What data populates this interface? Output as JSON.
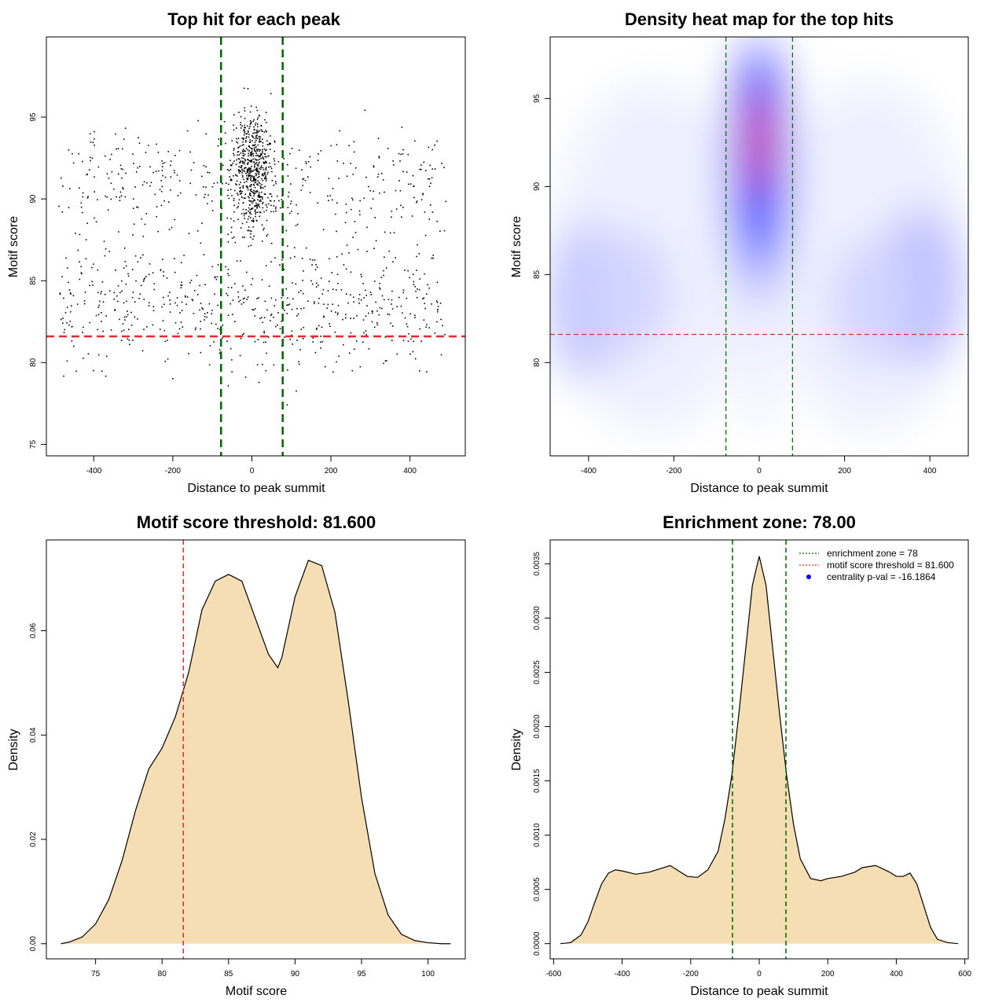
{
  "chart_data": [
    {
      "id": "scatter",
      "type": "scatter",
      "title": "Top hit for each peak",
      "xlabel": "Distance to peak summit",
      "ylabel": "Motif score",
      "xlim": [
        -520,
        540
      ],
      "ylim": [
        74.3,
        99.9
      ],
      "xticks": [
        -400,
        -200,
        0,
        200,
        400
      ],
      "yticks": [
        75,
        80,
        85,
        90,
        95
      ],
      "vlines": [
        -78,
        78
      ],
      "hline": 81.6,
      "colors": {
        "points": "#000000",
        "vlines": "#006400",
        "hline": "#e8282d"
      },
      "approx_points": 1600,
      "note": "dense cluster within |x|<78 centered near score 91.5; broad background bimodal around 83.5 and 91"
    },
    {
      "id": "heatmap",
      "type": "heatmap",
      "title": "Density heat map for the top hits",
      "xlabel": "Distance to peak summit",
      "ylabel": "Motif score",
      "xlim": [
        -490,
        490
      ],
      "ylim": [
        74.7,
        98.5
      ],
      "xticks": [
        -400,
        -200,
        0,
        200,
        400
      ],
      "yticks": [
        80,
        85,
        90,
        95
      ],
      "vlines": [
        -78,
        78
      ],
      "hline": 81.6,
      "colors": {
        "low": "#ffffff",
        "mid": "#0000ff",
        "high": "#ff0000",
        "vlines": "#006400",
        "hline": "#e8282d"
      },
      "hotspots": [
        {
          "x": 0,
          "y": 92.5,
          "intensity": 1.0
        },
        {
          "x": -420,
          "y": 83.5,
          "intensity": 0.3
        },
        {
          "x": 370,
          "y": 84.3,
          "intensity": 0.3
        }
      ]
    },
    {
      "id": "score_density",
      "type": "area",
      "title": "Motif score threshold: 81.600",
      "xlabel": "Motif score",
      "ylabel": "Density",
      "xlim": [
        71.3,
        102.8
      ],
      "ylim": [
        -0.0029,
        0.0774
      ],
      "xticks": [
        75,
        80,
        85,
        90,
        95,
        100
      ],
      "yticks": [
        0.0,
        0.02,
        0.04,
        0.06
      ],
      "ytick_labels": [
        "0.00",
        "0.02",
        "0.04",
        "0.06"
      ],
      "vline": 81.6,
      "colors": {
        "fill": "#f5deb3",
        "line": "#000000",
        "vline": "#e8282d"
      },
      "x": [
        72.4,
        73,
        74,
        75,
        76,
        77,
        78,
        79,
        80,
        81,
        82,
        83,
        84,
        85,
        86,
        87,
        88,
        88.7,
        89,
        90,
        91,
        92,
        93,
        94,
        95,
        96,
        97,
        98,
        99,
        100,
        101,
        101.7
      ],
      "y": [
        0.0,
        0.0003,
        0.0013,
        0.0038,
        0.0085,
        0.016,
        0.0255,
        0.0335,
        0.0375,
        0.0435,
        0.052,
        0.064,
        0.0695,
        0.0708,
        0.0695,
        0.0625,
        0.0555,
        0.0529,
        0.0548,
        0.0665,
        0.0735,
        0.0725,
        0.0635,
        0.0465,
        0.028,
        0.0135,
        0.0055,
        0.0018,
        0.0006,
        0.0002,
        0.0,
        0.0
      ]
    },
    {
      "id": "distance_density",
      "type": "area",
      "title": "Enrichment zone: 78.00",
      "xlabel": "Distance to peak summit",
      "ylabel": "Density",
      "xlim": [
        -610,
        610
      ],
      "ylim": [
        -0.00014,
        0.00372
      ],
      "xticks": [
        -600,
        -400,
        -200,
        0,
        200,
        400,
        600
      ],
      "yticks": [
        0.0,
        0.0005,
        0.001,
        0.0015,
        0.002,
        0.0025,
        0.003,
        0.0035
      ],
      "ytick_labels": [
        "0.0000",
        "0.0005",
        "0.0010",
        "0.0015",
        "0.0020",
        "0.0025",
        "0.0030",
        "0.0035"
      ],
      "vlines": [
        -78,
        78
      ],
      "colors": {
        "fill": "#f5deb3",
        "line": "#000000",
        "vlines": "#006400"
      },
      "x": [
        -580,
        -550,
        -520,
        -500,
        -480,
        -460,
        -440,
        -420,
        -400,
        -360,
        -320,
        -280,
        -260,
        -240,
        -210,
        -180,
        -150,
        -120,
        -100,
        -80,
        -60,
        -40,
        -20,
        0,
        20,
        40,
        60,
        80,
        100,
        120,
        150,
        180,
        200,
        240,
        280,
        300,
        340,
        380,
        400,
        420,
        440,
        460,
        480,
        500,
        520,
        550,
        580
      ],
      "y": [
        0.0,
        1e-05,
        8e-05,
        0.0002,
        0.00038,
        0.00055,
        0.00065,
        0.00068,
        0.00067,
        0.00064,
        0.00066,
        0.0007,
        0.00072,
        0.00068,
        0.00062,
        0.00061,
        0.00068,
        0.00085,
        0.00115,
        0.00155,
        0.0021,
        0.0027,
        0.0033,
        0.00357,
        0.0033,
        0.0027,
        0.0021,
        0.00155,
        0.0011,
        0.00078,
        0.0006,
        0.00058,
        0.0006,
        0.00062,
        0.00066,
        0.0007,
        0.00072,
        0.00066,
        0.00062,
        0.00062,
        0.00065,
        0.00055,
        0.00035,
        0.00015,
        4e-05,
        1e-05,
        0.0
      ],
      "legend": {
        "position": "top-right",
        "entries": [
          {
            "label": "enrichment zone = 78",
            "color": "#006400",
            "style": "dotted-line"
          },
          {
            "label": "motif score threshold = 81.600",
            "color": "#e8282d",
            "style": "dotted-line"
          },
          {
            "label": "centrality p-val = -16.1864",
            "color": "#0000ff",
            "style": "point"
          }
        ]
      }
    }
  ]
}
